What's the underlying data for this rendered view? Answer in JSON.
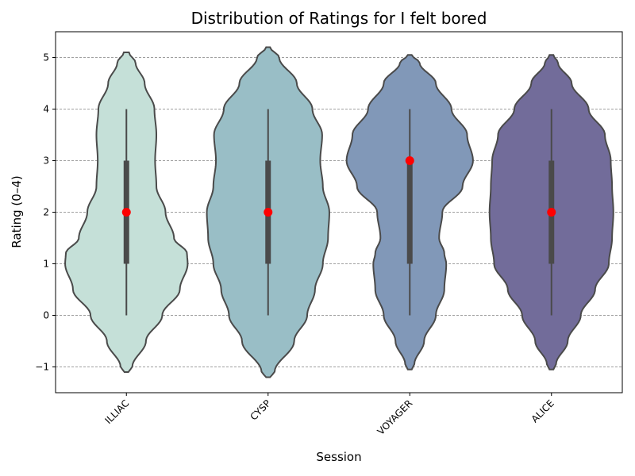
{
  "chart_data": {
    "type": "violin",
    "title": "Distribution of Ratings for I felt bored",
    "xlabel": "Session",
    "ylabel": "Rating (0–4)",
    "ylim": [
      -1.5,
      5.5
    ],
    "yticks": [
      -1,
      0,
      1,
      2,
      3,
      4,
      5
    ],
    "ytick_labels": [
      "−1",
      "0",
      "1",
      "2",
      "3",
      "4",
      "5"
    ],
    "grid": "horizontal-dashed",
    "categories": [
      "ILLIAC",
      "CYSP",
      "VOYAGER",
      "ALICE"
    ],
    "colors": [
      "#c5e0d8",
      "#99bec6",
      "#8198b8",
      "#726c9a"
    ],
    "series": [
      {
        "whisker": [
          0,
          4
        ],
        "iqr": [
          1,
          3
        ],
        "median": 2,
        "density_ymin": -1.1,
        "density_ymax": 5.1,
        "density_y": [
          -1.1,
          -1.0,
          -0.5,
          0.0,
          0.5,
          1.0,
          1.2,
          1.5,
          2.0,
          2.5,
          3.0,
          3.5,
          4.0,
          4.5,
          4.9,
          5.1
        ],
        "density_w": [
          0.03,
          0.09,
          0.3,
          0.55,
          0.82,
          0.94,
          0.93,
          0.73,
          0.6,
          0.46,
          0.44,
          0.46,
          0.43,
          0.28,
          0.14,
          0.04
        ]
      },
      {
        "whisker": [
          0,
          4
        ],
        "iqr": [
          1,
          3
        ],
        "median": 2,
        "density_ymin": -1.2,
        "density_ymax": 5.2,
        "density_y": [
          -1.2,
          -1.1,
          -0.5,
          0.0,
          0.5,
          1.0,
          1.5,
          2.0,
          2.5,
          3.0,
          3.5,
          4.0,
          4.5,
          5.0,
          5.2
        ],
        "density_w": [
          0.03,
          0.1,
          0.4,
          0.6,
          0.72,
          0.84,
          0.92,
          0.94,
          0.84,
          0.8,
          0.83,
          0.68,
          0.44,
          0.17,
          0.03
        ]
      },
      {
        "whisker": [
          0,
          4
        ],
        "iqr": [
          1,
          3
        ],
        "median": 3,
        "density_ymin": -1.05,
        "density_ymax": 5.05,
        "density_y": [
          -1.05,
          -0.95,
          -0.5,
          0.0,
          0.5,
          1.0,
          1.2,
          1.5,
          2.0,
          2.5,
          3.0,
          3.5,
          4.0,
          4.5,
          4.9,
          5.05
        ],
        "density_w": [
          0.03,
          0.07,
          0.22,
          0.4,
          0.53,
          0.56,
          0.53,
          0.45,
          0.5,
          0.81,
          0.97,
          0.88,
          0.64,
          0.4,
          0.15,
          0.03
        ]
      },
      {
        "whisker": [
          0,
          4
        ],
        "iqr": [
          1,
          3
        ],
        "median": 2,
        "density_ymin": -1.05,
        "density_ymax": 5.05,
        "density_y": [
          -1.05,
          -0.95,
          -0.5,
          0.0,
          0.5,
          1.0,
          1.5,
          2.0,
          2.5,
          3.0,
          3.5,
          4.0,
          4.5,
          4.9,
          5.05
        ],
        "density_w": [
          0.03,
          0.07,
          0.25,
          0.45,
          0.67,
          0.88,
          0.93,
          0.95,
          0.93,
          0.91,
          0.82,
          0.57,
          0.31,
          0.1,
          0.03
        ]
      }
    ]
  }
}
